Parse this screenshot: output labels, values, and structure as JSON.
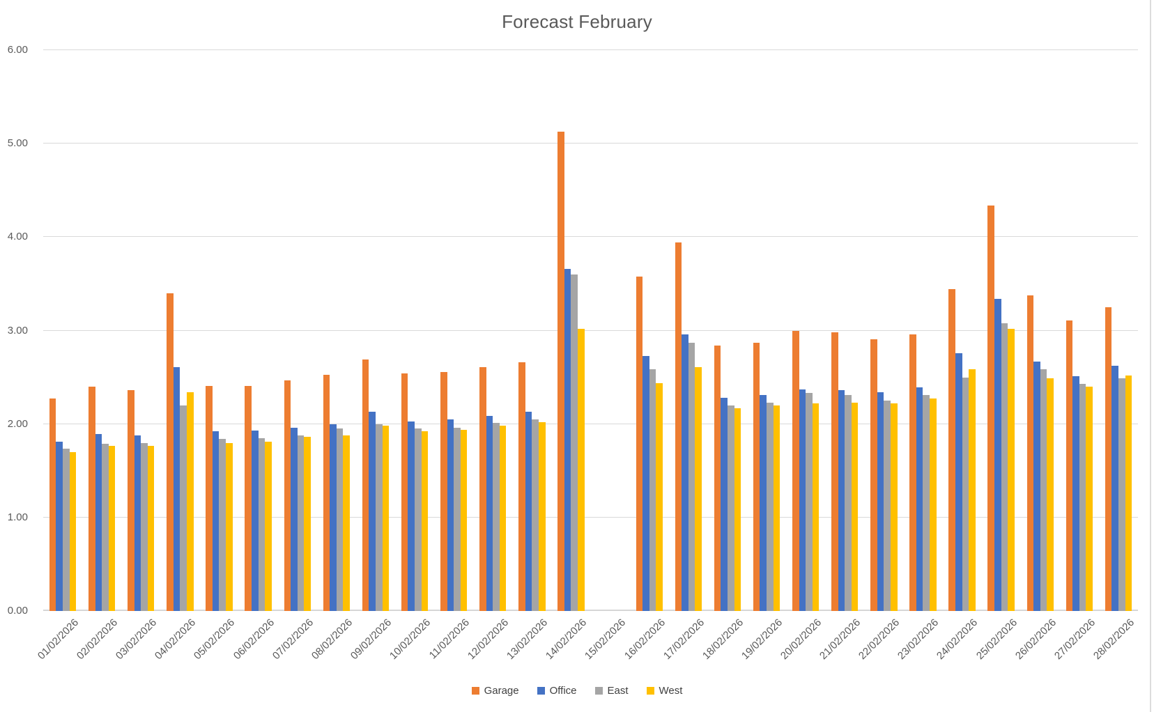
{
  "title": "Forecast February",
  "chart_data": {
    "type": "bar",
    "title": "Forecast February",
    "categories": [
      "01/02/2026",
      "02/02/2026",
      "03/02/2026",
      "04/02/2026",
      "05/02/2026",
      "06/02/2026",
      "07/02/2026",
      "08/02/2026",
      "09/02/2026",
      "10/02/2026",
      "11/02/2026",
      "12/02/2026",
      "13/02/2026",
      "14/02/2026",
      "15/02/2026",
      "16/02/2026",
      "17/02/2026",
      "18/02/2026",
      "19/02/2026",
      "20/02/2026",
      "21/02/2026",
      "22/02/2026",
      "23/02/2026",
      "24/02/2026",
      "25/02/2026",
      "26/02/2026",
      "27/02/2026",
      "28/02/2026"
    ],
    "series": [
      {
        "name": "Garage",
        "color": "#ED7D31",
        "values": [
          2.27,
          2.4,
          2.36,
          3.4,
          2.41,
          2.41,
          2.47,
          2.53,
          2.69,
          2.54,
          2.56,
          2.61,
          2.66,
          5.13,
          null,
          3.58,
          3.94,
          2.84,
          2.87,
          3.0,
          2.98,
          2.91,
          2.96,
          3.44,
          4.34,
          3.38,
          3.11,
          3.25
        ]
      },
      {
        "name": "Office",
        "color": "#4472C4",
        "values": [
          1.81,
          1.89,
          1.88,
          2.61,
          1.92,
          1.93,
          1.96,
          2.0,
          2.13,
          2.03,
          2.05,
          2.09,
          2.13,
          3.66,
          null,
          2.73,
          2.96,
          2.28,
          2.31,
          2.37,
          2.36,
          2.34,
          2.39,
          2.76,
          3.34,
          2.67,
          2.51,
          2.62
        ]
      },
      {
        "name": "East",
        "color": "#A5A5A5",
        "values": [
          1.74,
          1.79,
          1.8,
          2.2,
          1.84,
          1.85,
          1.88,
          1.95,
          2.0,
          1.95,
          1.96,
          2.01,
          2.05,
          3.6,
          null,
          2.59,
          2.87,
          2.2,
          2.23,
          2.33,
          2.31,
          2.25,
          2.31,
          2.5,
          3.08,
          2.59,
          2.43,
          2.49
        ]
      },
      {
        "name": "West",
        "color": "#FFC000",
        "values": [
          1.7,
          1.77,
          1.77,
          2.34,
          1.8,
          1.81,
          1.86,
          1.88,
          1.98,
          1.92,
          1.94,
          1.98,
          2.02,
          3.02,
          null,
          2.44,
          2.61,
          2.17,
          2.2,
          2.22,
          2.23,
          2.22,
          2.27,
          2.59,
          3.02,
          2.49,
          2.4,
          2.52
        ]
      }
    ],
    "ylim": [
      0,
      6
    ],
    "ytick_step": 1,
    "ytick_labels": [
      "0.00",
      "1.00",
      "2.00",
      "3.00",
      "4.00",
      "5.00",
      "6.00"
    ],
    "grid": true,
    "legend_position": "bottom",
    "legend_labels": [
      "Garage",
      "Office",
      "East",
      "West"
    ],
    "gridline_color": "#D9D9D9",
    "axis_text_color": "#595959",
    "title_color": "#595959",
    "background": "#FFFFFF"
  }
}
